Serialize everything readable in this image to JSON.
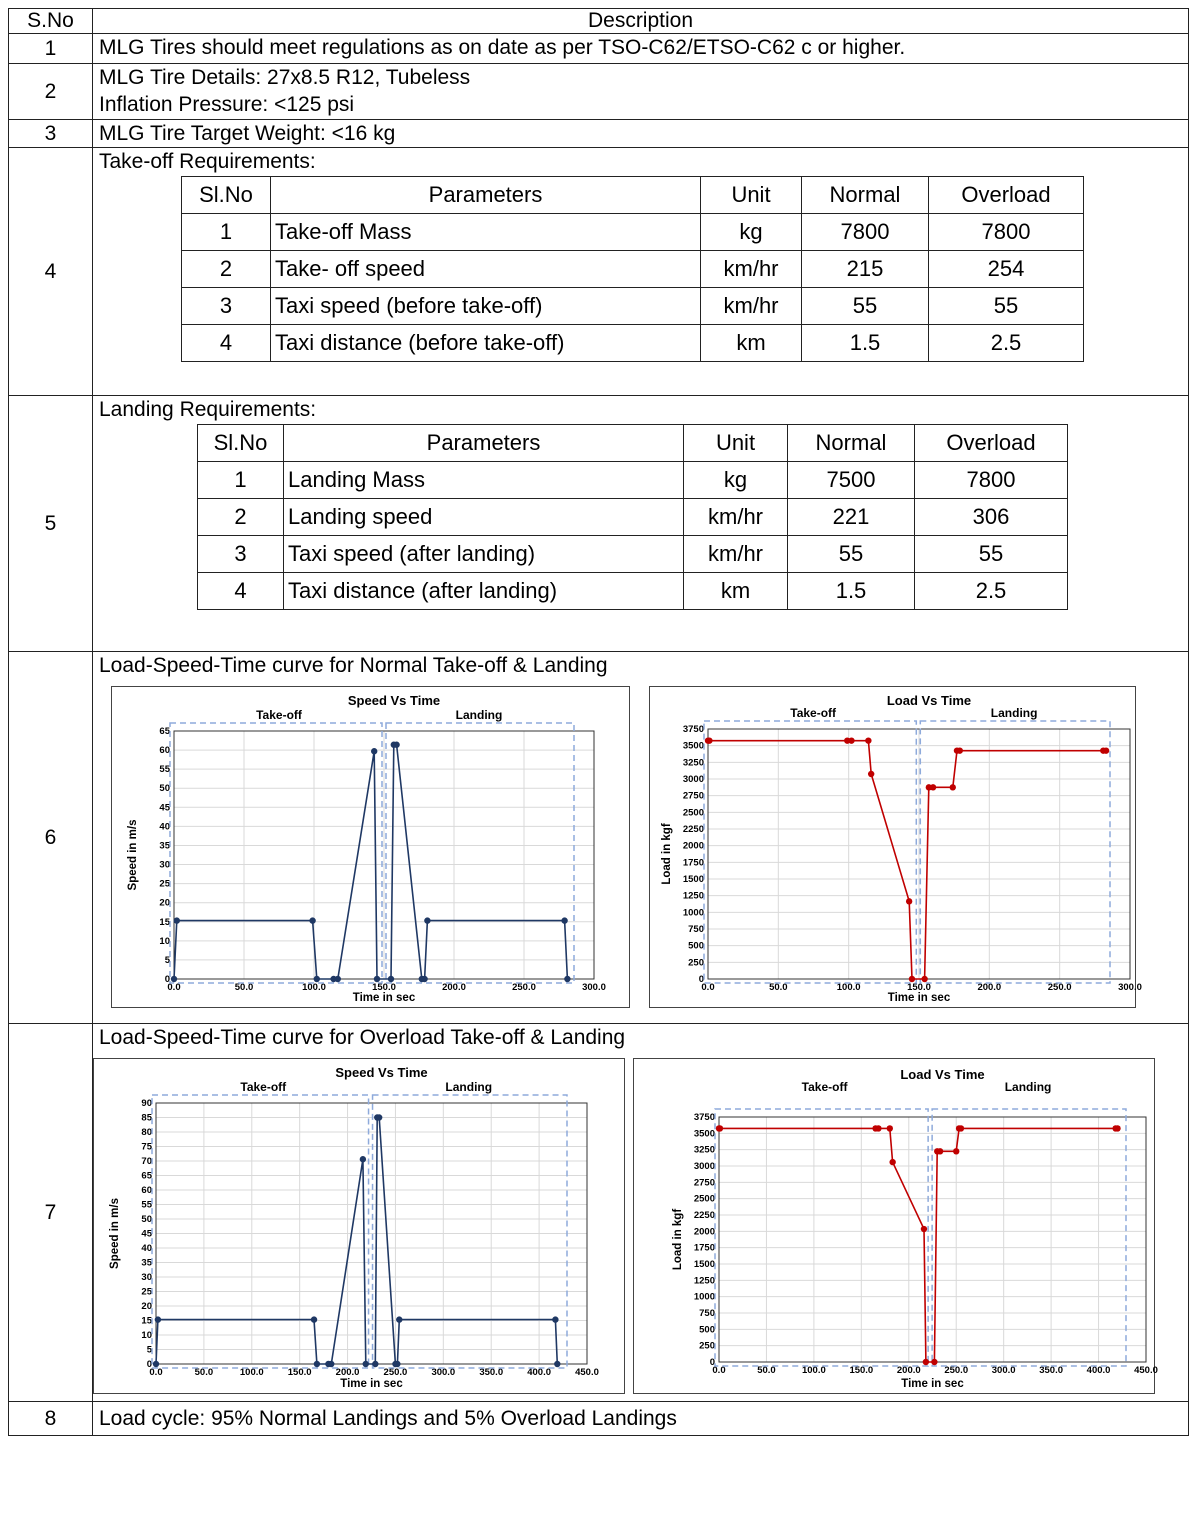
{
  "header": {
    "sno": "S.No",
    "description": "Description"
  },
  "rows": {
    "r1": {
      "sno": "1",
      "text": "MLG Tires should meet regulations as on date as per TSO-C62/ETSO-C62 c or higher."
    },
    "r2": {
      "sno": "2",
      "line1": "MLG Tire Details: 27x8.5 R12, Tubeless",
      "line2": "Inflation Pressure: <125 psi"
    },
    "r3": {
      "sno": "3",
      "text": "MLG Tire Target Weight: <16 kg"
    },
    "r4": {
      "sno": "4",
      "title": "Take-off Requirements:"
    },
    "r5": {
      "sno": "5",
      "title": "Landing Requirements:"
    },
    "r6": {
      "sno": "6",
      "title": "Load-Speed-Time curve for Normal Take-off & Landing"
    },
    "r7": {
      "sno": "7",
      "title": "Load-Speed-Time curve for Overload Take-off & Landing"
    },
    "r8": {
      "sno": "8",
      "text": "Load cycle: 95% Normal Landings and 5% Overload Landings"
    }
  },
  "takeoff_table": {
    "headers": [
      "Sl.No",
      "Parameters",
      "Unit",
      "Normal",
      "Overload"
    ],
    "rows": [
      [
        "1",
        "Take-off Mass",
        "kg",
        "7800",
        "7800"
      ],
      [
        "2",
        "Take- off speed",
        "km/hr",
        "215",
        "254"
      ],
      [
        "3",
        "Taxi speed (before take-off)",
        "km/hr",
        "55",
        "55"
      ],
      [
        "4",
        "Taxi distance (before take-off)",
        "km",
        "1.5",
        "2.5"
      ]
    ]
  },
  "landing_table": {
    "headers": [
      "Sl.No",
      "Parameters",
      "Unit",
      "Normal",
      "Overload"
    ],
    "rows": [
      [
        "1",
        "Landing Mass",
        "kg",
        "7500",
        "7800"
      ],
      [
        "2",
        "Landing speed",
        "km/hr",
        "221",
        "306"
      ],
      [
        "3",
        "Taxi speed (after landing)",
        "km/hr",
        "55",
        "55"
      ],
      [
        "4",
        "Taxi distance (after landing)",
        "km",
        "1.5",
        "2.5"
      ]
    ]
  },
  "chart_data": [
    {
      "id": "normal_speed",
      "type": "line",
      "title": "Speed Vs Time",
      "xlabel": "Time in sec",
      "ylabel": "Speed in m/s",
      "segments": [
        "Take-off",
        "Landing"
      ],
      "xlim": [
        0,
        300
      ],
      "ylim": [
        0,
        65
      ],
      "xticks": [
        0,
        50,
        100,
        150,
        200,
        250,
        300
      ],
      "xtick_labels": [
        "0.0",
        "50.0",
        "100.0",
        "150.0",
        "200.0",
        "250.0",
        "300.0"
      ],
      "yticks": [
        0,
        5,
        10,
        15,
        20,
        25,
        30,
        35,
        40,
        45,
        50,
        55,
        60,
        65
      ],
      "ytick_labels": [
        "0",
        "5",
        "10",
        "15",
        "20",
        "25",
        "30",
        "35",
        "40",
        "45",
        "50",
        "55",
        "60",
        "65"
      ],
      "color": "#1f3864",
      "x": [
        0,
        2,
        99,
        102,
        114,
        117,
        143,
        145,
        155,
        157,
        159,
        177,
        179,
        181,
        279,
        281
      ],
      "y": [
        0,
        15.3,
        15.3,
        0,
        0,
        0,
        59.7,
        0,
        0,
        61.4,
        61.4,
        0,
        0,
        15.3,
        15.3,
        0
      ]
    },
    {
      "id": "normal_load",
      "type": "line",
      "title": "Load Vs Time",
      "xlabel": "Time in sec",
      "ylabel": "Load in kgf",
      "segments": [
        "Take-off",
        "Landing"
      ],
      "xlim": [
        0,
        300
      ],
      "ylim": [
        0,
        3750
      ],
      "xticks": [
        0,
        50,
        100,
        150,
        200,
        250,
        300
      ],
      "xtick_labels": [
        "0.0",
        "50.0",
        "100.0",
        "150.0",
        "200.0",
        "250.0",
        "300.0"
      ],
      "yticks": [
        0,
        250,
        500,
        750,
        1000,
        1250,
        1500,
        1750,
        2000,
        2250,
        2500,
        2750,
        3000,
        3250,
        3500,
        3750
      ],
      "ytick_labels": [
        "0",
        "250",
        "500",
        "750",
        "1000",
        "1250",
        "1500",
        "1750",
        "2000",
        "2250",
        "2500",
        "2750",
        "3000",
        "3250",
        "3500",
        "3750"
      ],
      "color": "#c00000",
      "x": [
        0,
        1,
        99,
        102,
        114,
        116,
        143,
        145,
        154,
        157,
        160,
        174,
        177,
        179,
        281,
        283
      ],
      "y": [
        3575,
        3575,
        3575,
        3575,
        3575,
        3075,
        1165,
        0,
        0,
        2875,
        2875,
        2875,
        3425,
        3425,
        3425,
        3425
      ]
    },
    {
      "id": "overload_speed",
      "type": "line",
      "title": "Speed Vs Time",
      "xlabel": "Time in sec",
      "ylabel": "Speed in m/s",
      "segments": [
        "Take-off",
        "Landing"
      ],
      "xlim": [
        0,
        450
      ],
      "ylim": [
        0,
        90
      ],
      "xticks": [
        0,
        50,
        100,
        150,
        200,
        250,
        300,
        350,
        400,
        450
      ],
      "xtick_labels": [
        "0.0",
        "50.0",
        "100.0",
        "150.0",
        "200.0",
        "250.0",
        "300.0",
        "350.0",
        "400.0",
        "450.0"
      ],
      "yticks": [
        0,
        5,
        10,
        15,
        20,
        25,
        30,
        35,
        40,
        45,
        50,
        55,
        60,
        65,
        70,
        75,
        80,
        85,
        90
      ],
      "ytick_labels": [
        "0",
        "5",
        "10",
        "15",
        "20",
        "25",
        "30",
        "35",
        "40",
        "45",
        "50",
        "55",
        "60",
        "65",
        "70",
        "75",
        "80",
        "85",
        "90"
      ],
      "color": "#1f3864",
      "x": [
        0,
        2,
        165,
        168,
        180,
        183,
        216,
        219,
        229,
        231,
        233,
        250,
        252,
        254,
        417,
        419
      ],
      "y": [
        0,
        15.3,
        15.3,
        0,
        0,
        0,
        70.6,
        0,
        0,
        85,
        85,
        0,
        0,
        15.3,
        15.3,
        0
      ]
    },
    {
      "id": "overload_load",
      "type": "line",
      "title": "Load Vs Time",
      "xlabel": "Time in sec",
      "ylabel": "Load in kgf",
      "segments": [
        "Take-off",
        "Landing"
      ],
      "xlim": [
        0,
        450
      ],
      "ylim": [
        0,
        3750
      ],
      "xticks": [
        0,
        50,
        100,
        150,
        200,
        250,
        300,
        350,
        400,
        450
      ],
      "xtick_labels": [
        "0.0",
        "50.0",
        "100.0",
        "150.0",
        "200.0",
        "250.0",
        "300.0",
        "350.0",
        "400.0",
        "450.0"
      ],
      "yticks": [
        0,
        250,
        500,
        750,
        1000,
        1250,
        1500,
        1750,
        2000,
        2250,
        2500,
        2750,
        3000,
        3250,
        3500,
        3750
      ],
      "ytick_labels": [
        "0",
        "250",
        "500",
        "750",
        "1000",
        "1250",
        "1500",
        "1750",
        "2000",
        "2250",
        "2500",
        "2750",
        "3000",
        "3250",
        "3500",
        "3750"
      ],
      "color": "#c00000",
      "x": [
        0,
        1,
        165,
        168,
        180,
        183,
        216,
        218,
        227,
        230,
        233,
        250,
        253,
        255,
        418,
        420
      ],
      "y": [
        3575,
        3575,
        3575,
        3575,
        3575,
        3060,
        2035,
        0,
        0,
        3225,
        3225,
        3225,
        3575,
        3575,
        3575,
        3575
      ]
    }
  ]
}
